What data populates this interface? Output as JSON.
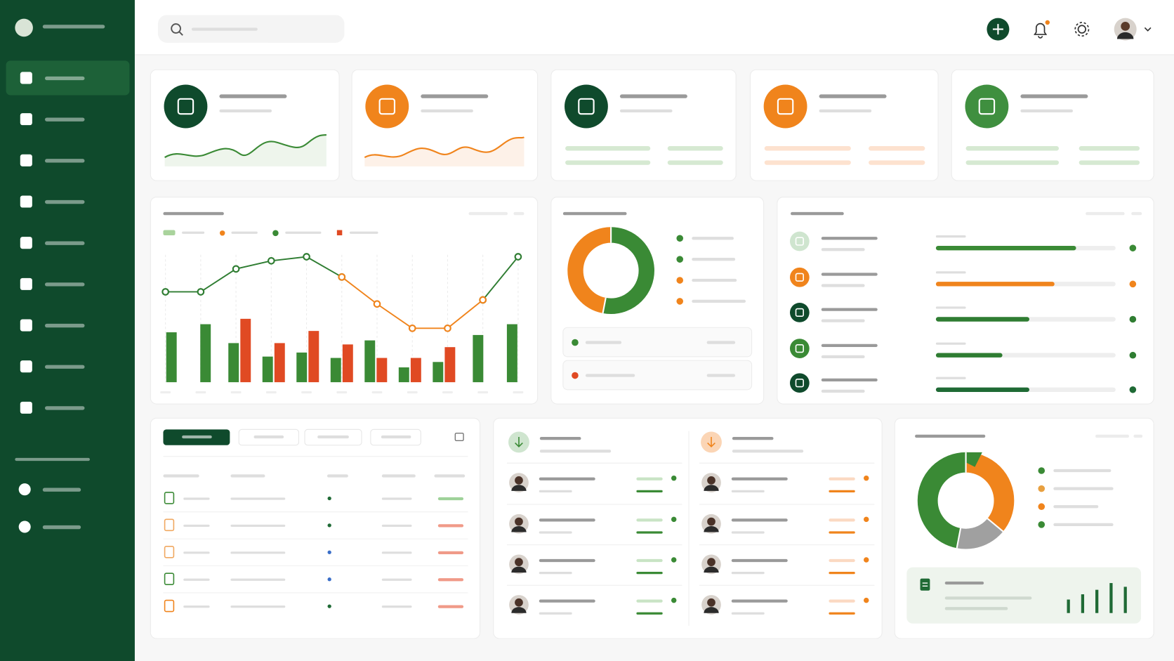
{
  "chart_data": [
    {
      "type": "combo",
      "categories": [
        null,
        null,
        null,
        null,
        null,
        null,
        null,
        null,
        null,
        null,
        null
      ],
      "ylim": [
        0,
        100
      ],
      "lines": [
        {
          "color": "#2f7d32",
          "values": [
            67,
            67,
            84,
            90,
            93,
            78,
            null,
            null,
            null,
            61,
            93
          ]
        },
        {
          "color": "#f0841c",
          "values": [
            null,
            null,
            null,
            null,
            null,
            78,
            58,
            40,
            40,
            61,
            null
          ]
        }
      ],
      "series": [
        {
          "color": "#3a8a35",
          "values": [
            37,
            43,
            29,
            19,
            22,
            18,
            31,
            11,
            15,
            35,
            43
          ]
        },
        {
          "color": "#e04a23",
          "values": [
            null,
            null,
            47,
            29,
            38,
            28,
            18,
            18,
            26,
            null,
            null
          ]
        }
      ]
    },
    {
      "type": "pie",
      "values": [
        53,
        47
      ],
      "colors": [
        "#3a8a35",
        "#f0841c"
      ]
    },
    {
      "type": "progress",
      "max": 100,
      "values": [
        78,
        66,
        52,
        37,
        52
      ],
      "colors": [
        "#3a8a35",
        "#f0841c",
        "#2f7d32",
        "#2f7d32",
        "#1f6a35"
      ]
    },
    {
      "type": "pie",
      "values": [
        36,
        17,
        47
      ],
      "colors": [
        "#f0841c",
        "#a0a0a0",
        "#3a8a35"
      ]
    },
    {
      "type": "bar",
      "values": [
        18,
        25,
        31,
        40,
        35
      ],
      "color": "#1f6a35"
    }
  ]
}
